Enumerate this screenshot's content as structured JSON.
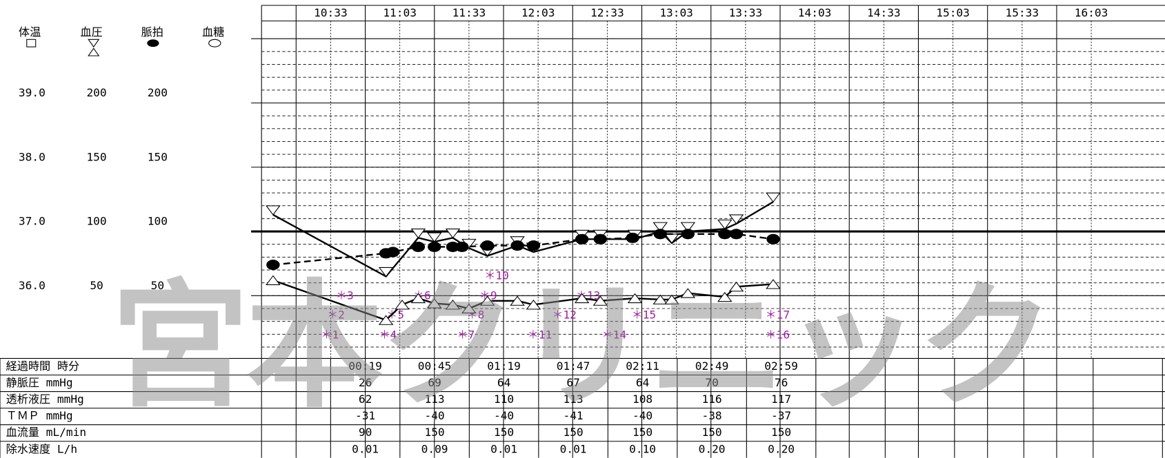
{
  "legend_labels": [
    "体温",
    "血圧",
    "脈拍",
    "血糖"
  ],
  "chart_data": {
    "type": "line",
    "xlim": [
      "10:18",
      "16:50"
    ],
    "xticks": [
      "10:33",
      "11:03",
      "11:33",
      "12:03",
      "12:33",
      "13:03",
      "13:33",
      "14:03",
      "14:33",
      "15:03",
      "15:33",
      "16:03"
    ],
    "ylim": [
      0,
      250
    ],
    "yticks": [
      50,
      100,
      150,
      200
    ],
    "y2lim": [
      35,
      40
    ],
    "y2ticks": [
      {
        "value": 36,
        "label": "36.0"
      },
      {
        "value": 37,
        "label": "37.0"
      },
      {
        "value": 38,
        "label": "38.0"
      },
      {
        "value": 39,
        "label": "39.0"
      }
    ],
    "pulse_ticks": [
      50,
      100,
      150,
      200
    ],
    "reference_line": 100,
    "series": [
      {
        "marker": "down-triangle",
        "dashed": false,
        "color": "#000000",
        "x": [
          "10:23",
          "11:12",
          "11:26",
          "11:33",
          "11:41",
          "11:48",
          "11:56",
          "12:09",
          "12:16",
          "12:37",
          "12:45",
          "13:00",
          "13:11",
          "13:16",
          "13:23",
          "13:39",
          "13:44",
          "14:00"
        ],
        "values": [
          113,
          65,
          95,
          92,
          95,
          87,
          81,
          89,
          84,
          94,
          94,
          94,
          100,
          91,
          100,
          102,
          106,
          123
        ]
      },
      {
        "marker": "up-triangle",
        "dashed": false,
        "color": "#000000",
        "x": [
          "10:23",
          "11:12",
          "11:19",
          "11:26",
          "11:33",
          "11:41",
          "11:48",
          "11:56",
          "12:09",
          "12:16",
          "12:37",
          "12:45",
          "13:00",
          "13:11",
          "13:16",
          "13:23",
          "13:39",
          "13:44",
          "14:00"
        ],
        "values": [
          62,
          31,
          43,
          48,
          44,
          43,
          40,
          46,
          46,
          43,
          48,
          46,
          48,
          47,
          47,
          52,
          49,
          57,
          59
        ]
      },
      {
        "marker": "circle",
        "dashed": true,
        "color": "#000000",
        "x": [
          "10:23",
          "11:12",
          "11:15",
          "11:26",
          "11:33",
          "11:41",
          "11:45",
          "11:56",
          "12:09",
          "12:16",
          "12:37",
          "12:45",
          "12:59",
          "13:11",
          "13:23",
          "13:39",
          "13:44",
          "14:00"
        ],
        "values": [
          74,
          83,
          84,
          88,
          88,
          88,
          88,
          89,
          89,
          89,
          94,
          94,
          95,
          98,
          98,
          98,
          98,
          94
        ]
      }
    ],
    "annotations": [
      "＊1",
      "＊2",
      "＊3",
      "＊4",
      "＊5",
      "＊6",
      "＊7",
      "＊8",
      "＊9",
      "＊10",
      "＊11",
      "＊12",
      "＊13",
      "＊14",
      "＊15",
      "＊16",
      "＊17"
    ]
  },
  "table": {
    "rows": [
      [
        "経過時間 時分",
        "00:19",
        "00:45",
        "01:19",
        "01:47",
        "02:11",
        "02:49",
        "02:59"
      ],
      [
        "静脈圧 mmHg",
        "26",
        "69",
        "64",
        "67",
        "64",
        "70",
        "76"
      ],
      [
        "透析液圧 mmHg",
        "62",
        "113",
        "110",
        "113",
        "108",
        "116",
        "117"
      ],
      [
        "ＴＭＰ mmHg",
        "-31",
        "-40",
        "-40",
        "-41",
        "-40",
        "-38",
        "-37"
      ],
      [
        "血流量 mL/min",
        "90",
        "150",
        "150",
        "150",
        "150",
        "150",
        "150"
      ],
      [
        "除水速度 L/h",
        "0.01",
        "0.09",
        "0.01",
        "0.01",
        "0.10",
        "0.20",
        "0.20"
      ]
    ]
  },
  "watermark": "宮本クリニック"
}
